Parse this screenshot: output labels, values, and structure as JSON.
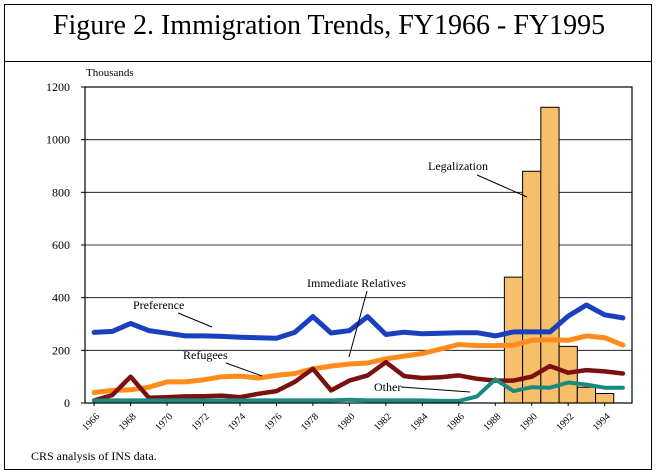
{
  "title": "Figure 2.  Immigration Trends, FY1966 - FY1995",
  "source_note": "CRS analysis of INS data.",
  "chart_data": {
    "type": "line",
    "ylabel": "Thousands",
    "xlabel": "",
    "ylim": [
      0,
      1200
    ],
    "yticks": [
      0,
      200,
      400,
      600,
      800,
      1000,
      1200
    ],
    "x": [
      1966,
      1967,
      1968,
      1969,
      1970,
      1971,
      1972,
      1973,
      1974,
      1975,
      1976,
      1977,
      1978,
      1979,
      1980,
      1981,
      1982,
      1983,
      1984,
      1985,
      1986,
      1987,
      1988,
      1989,
      1990,
      1991,
      1992,
      1993,
      1994,
      1995
    ],
    "xtick_labels": [
      "1966",
      "1968",
      "1970",
      "1972",
      "1974",
      "1976",
      "1978",
      "1980",
      "1982",
      "1984",
      "1986",
      "1988",
      "1990",
      "1992",
      "1994"
    ],
    "grid": true,
    "series": [
      {
        "name": "Preference",
        "color": "#1a3fbf",
        "values": [
          268,
          272,
          302,
          275,
          265,
          255,
          255,
          253,
          250,
          248,
          246,
          268,
          328,
          266,
          275,
          328,
          260,
          269,
          263,
          265,
          267,
          267,
          255,
          270,
          270,
          270,
          330,
          372,
          335,
          323
        ]
      },
      {
        "name": "Immediate Relatives",
        "color": "#ff8c1a",
        "values": [
          40,
          48,
          50,
          60,
          80,
          80,
          88,
          100,
          102,
          95,
          105,
          112,
          130,
          140,
          148,
          152,
          168,
          178,
          188,
          205,
          222,
          218,
          218,
          220,
          238,
          240,
          238,
          255,
          248,
          220
        ]
      },
      {
        "name": "Refugees",
        "color": "#7a1010",
        "values": [
          10,
          30,
          100,
          20,
          22,
          25,
          26,
          28,
          22,
          35,
          45,
          80,
          130,
          48,
          85,
          105,
          155,
          102,
          95,
          98,
          105,
          92,
          85,
          85,
          100,
          140,
          115,
          125,
          120,
          112
        ]
      },
      {
        "name": "Other",
        "color": "#1a8a80",
        "values": [
          10,
          10,
          10,
          10,
          10,
          10,
          10,
          10,
          10,
          10,
          10,
          10,
          10,
          10,
          12,
          10,
          10,
          10,
          10,
          8,
          8,
          25,
          90,
          45,
          60,
          58,
          78,
          70,
          58,
          58
        ]
      }
    ],
    "bars": {
      "name": "Legalization",
      "color": "#f8bf6a",
      "x": [
        1989,
        1990,
        1991,
        1992,
        1993,
        1994
      ],
      "values": [
        478,
        880,
        1123,
        215,
        60,
        36
      ]
    },
    "annotations": [
      {
        "text": "Preference",
        "series": "Preference"
      },
      {
        "text": "Immediate Relatives",
        "series": "Immediate Relatives"
      },
      {
        "text": "Refugees",
        "series": "Refugees"
      },
      {
        "text": "Other",
        "series": "Other"
      },
      {
        "text": "Legalization",
        "series": "Legalization"
      }
    ]
  }
}
